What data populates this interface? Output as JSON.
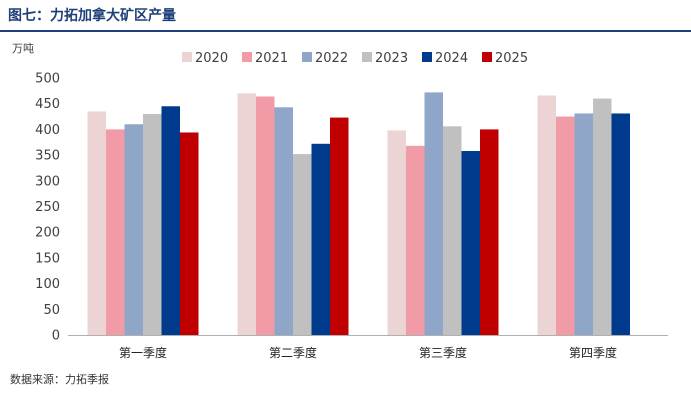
{
  "figure": {
    "title": "图七：力拓加拿大矿区产量",
    "source": "数据来源：力拓季报"
  },
  "chart_data": {
    "type": "bar",
    "title": "图七：力拓加拿大矿区产量",
    "ylabel": "万吨",
    "xlabel": "",
    "ylim": [
      0,
      500
    ],
    "yticks": [
      0,
      50,
      100,
      150,
      200,
      250,
      300,
      350,
      400,
      450,
      500
    ],
    "grid": false,
    "legend_position": "top",
    "categories": [
      "第一季度",
      "第二季度",
      "第三季度",
      "第四季度"
    ],
    "series": [
      {
        "name": "2020",
        "color": "#ecd4d4",
        "values": [
          435,
          470,
          398,
          466
        ]
      },
      {
        "name": "2021",
        "color": "#f19ba6",
        "values": [
          400,
          464,
          368,
          425
        ]
      },
      {
        "name": "2022",
        "color": "#8fa6c9",
        "values": [
          410,
          443,
          472,
          431
        ]
      },
      {
        "name": "2023",
        "color": "#c0c0c0",
        "values": [
          430,
          352,
          406,
          460
        ]
      },
      {
        "name": "2024",
        "color": "#003a8c",
        "values": [
          445,
          372,
          358,
          431
        ]
      },
      {
        "name": "2025",
        "color": "#c00000",
        "values": [
          394,
          423,
          400,
          null
        ]
      }
    ]
  }
}
